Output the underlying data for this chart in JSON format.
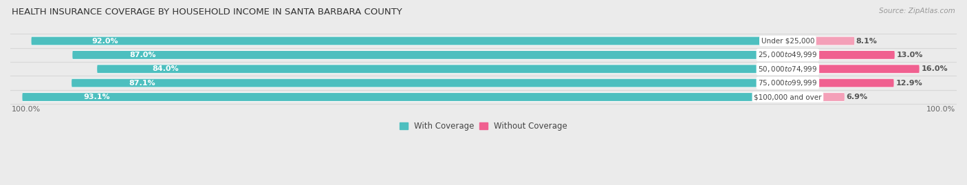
{
  "title": "HEALTH INSURANCE COVERAGE BY HOUSEHOLD INCOME IN SANTA BARBARA COUNTY",
  "source": "Source: ZipAtlas.com",
  "categories": [
    "Under $25,000",
    "$25,000 to $49,999",
    "$50,000 to $74,999",
    "$75,000 to $99,999",
    "$100,000 and over"
  ],
  "with_coverage": [
    92.0,
    87.0,
    84.0,
    87.1,
    93.1
  ],
  "without_coverage": [
    8.1,
    13.0,
    16.0,
    12.9,
    6.9
  ],
  "color_with": "#4dbfbf",
  "color_without_rows": [
    "#f4a0b8",
    "#f06090",
    "#f06090",
    "#f06090",
    "#f4a0b8"
  ],
  "bg_color": "#ebebeb",
  "bar_bg_color": "#ffffff",
  "row_sep_color": "#d8d8d8",
  "title_fontsize": 9.5,
  "source_fontsize": 7.5,
  "label_fontsize": 8,
  "tick_fontsize": 8,
  "legend_fontsize": 8.5,
  "bar_height": 0.58,
  "axis_label_left": "100.0%",
  "axis_label_right": "100.0%",
  "scale": 5.5
}
